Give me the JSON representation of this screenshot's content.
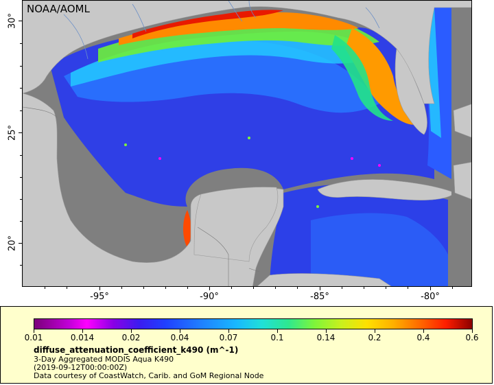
{
  "map": {
    "agency": "NOAA/AOML",
    "lat_labels": [
      "30°",
      "25°",
      "20°"
    ],
    "lon_labels": [
      "-95°",
      "-90°",
      "-85°",
      "-80°"
    ],
    "land_color": "#c8c8c8",
    "nodata_color": "#7f7f7f"
  },
  "legend": {
    "colorbar_labels": [
      "0.01",
      "0.014",
      "0.02",
      "0.04",
      "0.07",
      "0.1",
      "0.14",
      "0.2",
      "0.4",
      "0.6"
    ],
    "variable": "diffuse_attenuation_coefficient_k490 (m^-1)",
    "description": "3-Day Aggregated MODIS Aqua K490",
    "time": "(2019-09-12T00:00:00Z)",
    "credit": "Data courtesy of CoastWatch, Carib. and GoM Regional Node"
  }
}
